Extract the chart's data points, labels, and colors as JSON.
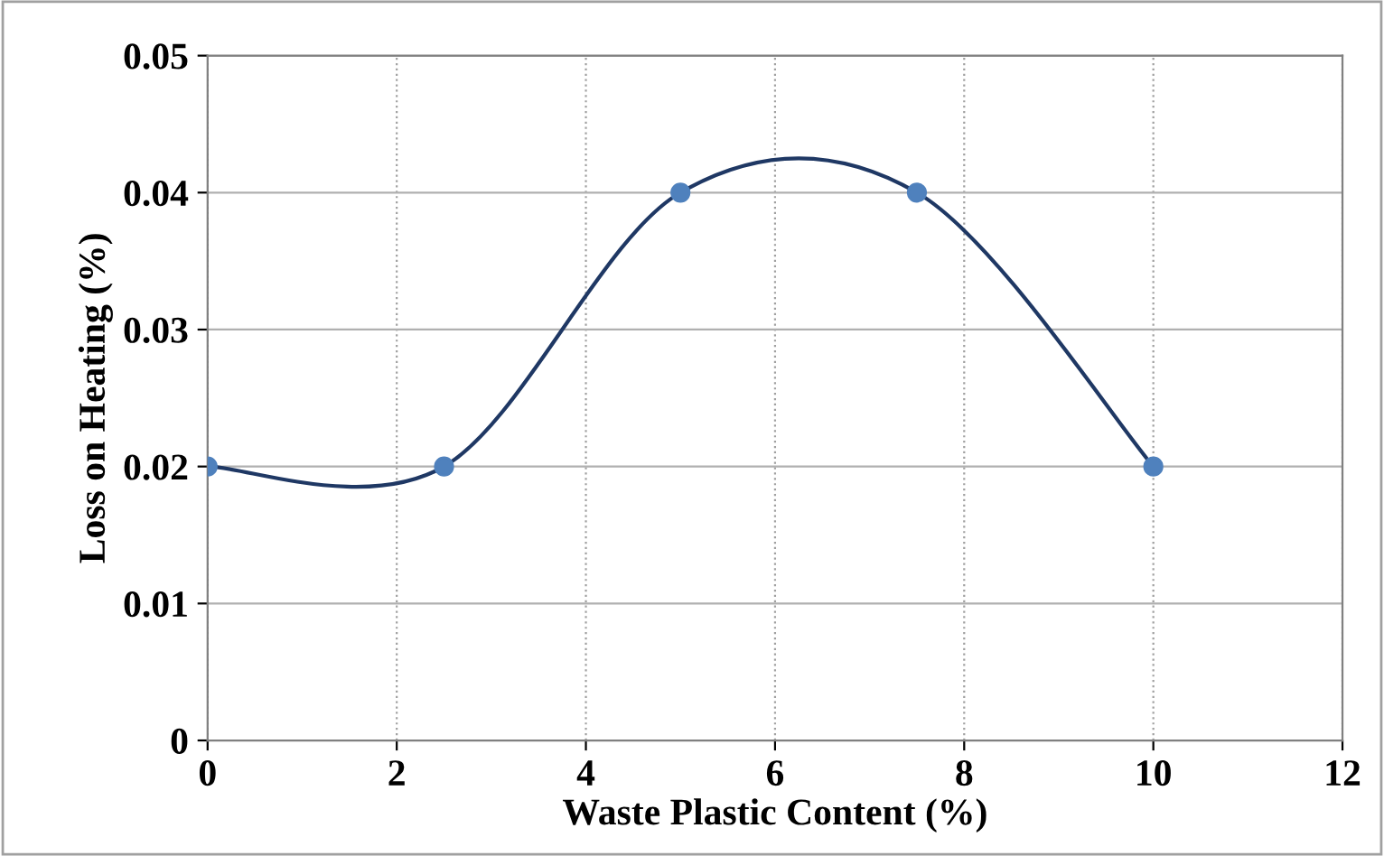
{
  "chart_data": {
    "type": "line",
    "xlabel": "Waste Plastic Content (%)",
    "ylabel": "Loss on Heating (%)",
    "x": [
      0,
      2.5,
      5,
      7.5,
      10
    ],
    "series": [
      {
        "color": "#1f3864",
        "values": [
          0.02,
          0.02,
          0.04,
          0.04,
          0.02
        ]
      }
    ],
    "marker": "circle",
    "xlim": [
      0,
      12
    ],
    "xticks": [
      0,
      2,
      4,
      6,
      8,
      10,
      12
    ],
    "ylim": [
      0,
      0.05
    ],
    "yticks": [
      0,
      0.01,
      0.02,
      0.03,
      0.04,
      0.05
    ],
    "grid": true,
    "legend": false
  }
}
